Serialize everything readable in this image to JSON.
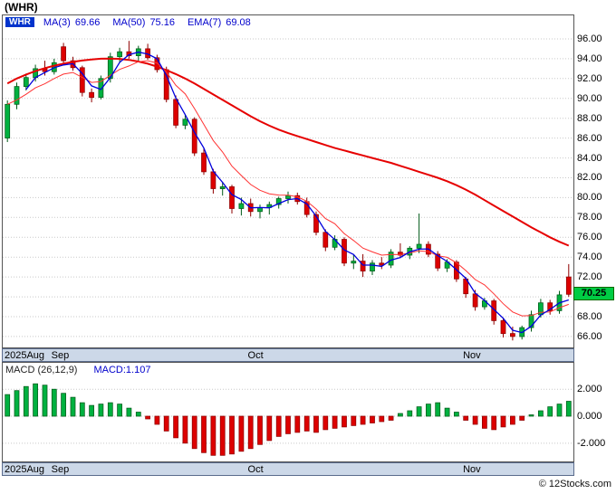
{
  "title": "(WHR)",
  "watermark": "© 12Stocks.com",
  "price_panel": {
    "symbol": "WHR",
    "indicators": [
      {
        "label": "MA(3)",
        "value": "69.66"
      },
      {
        "label": "MA(50)",
        "value": "75.16"
      },
      {
        "label": "EMA(7)",
        "value": "69.08"
      }
    ]
  },
  "macd_panel": {
    "label": "MACD (26,12,9)",
    "value": "MACD:1.107"
  },
  "price_badge": {
    "value": "70.25"
  },
  "colors": {
    "up": "#00b140",
    "up_border": "#005a18",
    "down": "#dd0000",
    "down_border": "#8e0000",
    "ma3": "#0000dd",
    "ma50": "#e60000",
    "ema7": "#ff3333",
    "badge_bg": "#00cc44",
    "accent_blue": "#0000cc",
    "grid": "#c9c9c9",
    "strip_bg": "#ccd8e8"
  },
  "chart_data": [
    {
      "type": "candlestick",
      "title": "WHR daily price with MA(3), MA(50), EMA(7)",
      "legend_position": "top-left",
      "grid": true,
      "y_ticks": [
        "96.00",
        "94.00",
        "92.00",
        "90.00",
        "88.00",
        "86.00",
        "84.00",
        "82.00",
        "80.00",
        "78.00",
        "76.00",
        "74.00",
        "72.00",
        "70.00",
        "68.00",
        "66.00"
      ],
      "y_max": 97.0,
      "y_min": 64.9,
      "x_labels": [
        {
          "label": "2025Aug",
          "index": 0
        },
        {
          "label": "Sep",
          "index": 5
        },
        {
          "label": "Oct",
          "index": 26
        },
        {
          "label": "Nov",
          "index": 49
        }
      ],
      "last_price": 70.25,
      "candles": [
        [
          86.0,
          89.8,
          85.6,
          89.4
        ],
        [
          89.4,
          91.6,
          88.9,
          91.2
        ],
        [
          91.2,
          92.5,
          90.8,
          92.1
        ],
        [
          92.1,
          93.4,
          91.7,
          93.0
        ],
        [
          93.0,
          93.8,
          92.3,
          92.7
        ],
        [
          92.7,
          94.0,
          92.4,
          93.6
        ],
        [
          95.2,
          95.6,
          93.4,
          93.8
        ],
        [
          93.8,
          94.2,
          92.8,
          93.1
        ],
        [
          93.1,
          93.3,
          90.2,
          90.6
        ],
        [
          90.6,
          91.0,
          89.6,
          90.1
        ],
        [
          90.1,
          92.3,
          89.9,
          92.0
        ],
        [
          92.0,
          94.6,
          91.6,
          94.2
        ],
        [
          94.2,
          95.1,
          93.6,
          94.7
        ],
        [
          94.7,
          95.8,
          94.0,
          94.3
        ],
        [
          94.3,
          95.3,
          93.8,
          95.0
        ],
        [
          95.0,
          95.5,
          93.9,
          94.1
        ],
        [
          94.1,
          94.4,
          92.6,
          92.9
        ],
        [
          92.9,
          93.2,
          89.6,
          89.9
        ],
        [
          89.9,
          90.3,
          87.0,
          87.3
        ],
        [
          87.3,
          88.3,
          86.9,
          87.9
        ],
        [
          87.9,
          88.1,
          84.2,
          84.5
        ],
        [
          84.5,
          85.0,
          82.3,
          82.6
        ],
        [
          82.6,
          82.9,
          80.4,
          80.9
        ],
        [
          80.9,
          81.6,
          80.2,
          81.1
        ],
        [
          81.1,
          81.3,
          78.4,
          78.9
        ],
        [
          78.9,
          80.0,
          78.2,
          79.4
        ],
        [
          79.4,
          79.9,
          78.1,
          78.6
        ],
        [
          78.6,
          79.3,
          77.9,
          79.0
        ],
        [
          79.0,
          79.6,
          78.3,
          79.3
        ],
        [
          79.3,
          80.1,
          78.9,
          79.9
        ],
        [
          79.9,
          80.6,
          79.4,
          80.2
        ],
        [
          80.2,
          80.5,
          79.3,
          79.6
        ],
        [
          79.6,
          80.0,
          78.0,
          78.3
        ],
        [
          78.3,
          78.6,
          76.2,
          76.5
        ],
        [
          76.5,
          76.8,
          74.6,
          75.0
        ],
        [
          75.0,
          76.2,
          74.7,
          75.8
        ],
        [
          75.8,
          76.0,
          73.1,
          73.4
        ],
        [
          73.4,
          74.2,
          72.8,
          73.6
        ],
        [
          73.6,
          74.3,
          72.0,
          72.6
        ],
        [
          72.6,
          73.7,
          72.2,
          73.4
        ],
        [
          73.4,
          74.0,
          72.8,
          73.2
        ],
        [
          73.2,
          74.8,
          72.9,
          74.5
        ],
        [
          74.5,
          75.4,
          73.9,
          74.2
        ],
        [
          74.2,
          75.1,
          73.8,
          74.9
        ],
        [
          74.9,
          78.4,
          74.4,
          75.3
        ],
        [
          75.3,
          75.6,
          74.0,
          74.3
        ],
        [
          74.3,
          74.6,
          72.6,
          72.9
        ],
        [
          72.9,
          73.8,
          72.5,
          73.5
        ],
        [
          73.5,
          73.7,
          71.5,
          71.8
        ],
        [
          71.8,
          72.0,
          69.9,
          70.3
        ],
        [
          70.3,
          70.7,
          68.6,
          69.0
        ],
        [
          69.0,
          69.9,
          68.7,
          69.6
        ],
        [
          69.6,
          69.8,
          67.2,
          67.6
        ],
        [
          67.6,
          67.9,
          65.9,
          66.3
        ],
        [
          66.3,
          67.0,
          65.6,
          66.0
        ],
        [
          66.0,
          67.1,
          65.7,
          66.9
        ],
        [
          66.9,
          68.6,
          66.5,
          68.2
        ],
        [
          68.2,
          69.8,
          67.9,
          69.4
        ],
        [
          69.4,
          69.7,
          68.2,
          68.6
        ],
        [
          68.6,
          70.6,
          68.3,
          70.2
        ],
        [
          72.0,
          73.3,
          70.0,
          70.25
        ]
      ],
      "ma50": [
        91.5,
        92.0,
        92.4,
        92.75,
        93.05,
        93.3,
        93.5,
        93.68,
        93.82,
        93.93,
        94.0,
        94.02,
        93.98,
        93.88,
        93.72,
        93.5,
        93.2,
        92.85,
        92.45,
        92.0,
        91.5,
        90.95,
        90.4,
        89.85,
        89.3,
        88.75,
        88.2,
        87.7,
        87.25,
        86.85,
        86.5,
        86.2,
        85.9,
        85.6,
        85.3,
        85.0,
        84.75,
        84.5,
        84.25,
        84.0,
        83.75,
        83.5,
        83.2,
        82.9,
        82.6,
        82.3,
        82.0,
        81.65,
        81.25,
        80.8,
        80.3,
        79.75,
        79.2,
        78.65,
        78.1,
        77.55,
        77.0,
        76.5,
        76.0,
        75.55,
        75.16
      ]
    },
    {
      "type": "bar",
      "title": "MACD (26,12,9) histogram",
      "grid": true,
      "y_ticks": [
        "2.000",
        "0.000",
        "-2.000"
      ],
      "y_max": 2.95,
      "y_min": -3.35,
      "values": [
        1.6,
        1.9,
        2.2,
        2.4,
        2.3,
        2.0,
        1.7,
        1.4,
        1.0,
        0.8,
        0.9,
        1.0,
        0.9,
        0.6,
        0.3,
        -0.2,
        -0.6,
        -1.1,
        -1.6,
        -2.0,
        -2.4,
        -2.7,
        -2.9,
        -2.9,
        -2.8,
        -2.6,
        -2.4,
        -2.1,
        -1.8,
        -1.5,
        -1.3,
        -1.2,
        -1.1,
        -1.2,
        -1.0,
        -0.9,
        -0.8,
        -0.7,
        -0.6,
        -0.5,
        -0.4,
        -0.3,
        0.2,
        0.4,
        0.7,
        0.9,
        1.0,
        0.6,
        0.3,
        -0.3,
        -0.6,
        -0.9,
        -1.0,
        -0.8,
        -0.6,
        -0.3,
        0.1,
        0.4,
        0.7,
        0.9,
        1.107
      ]
    }
  ]
}
